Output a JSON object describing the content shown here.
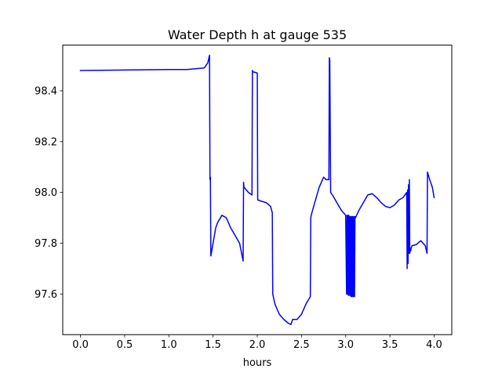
{
  "chart_data": {
    "type": "line",
    "title": "Water Depth h at gauge 535",
    "xlabel": "hours",
    "ylabel": "",
    "xlim": [
      -0.2,
      4.2
    ],
    "ylim": [
      97.44,
      98.58
    ],
    "xticks": [
      0.0,
      0.5,
      1.0,
      1.5,
      2.0,
      2.5,
      3.0,
      3.5,
      4.0
    ],
    "xtick_labels": [
      "0.0",
      "0.5",
      "1.0",
      "1.5",
      "2.0",
      "2.5",
      "3.0",
      "3.5",
      "4.0"
    ],
    "yticks": [
      97.6,
      97.8,
      98.0,
      98.2,
      98.4
    ],
    "ytick_labels": [
      "97.6",
      "97.8",
      "98.0",
      "98.2",
      "98.4"
    ],
    "grid": false,
    "series": [
      {
        "color": "#0000ff",
        "x": [
          0.0,
          0.5,
          1.0,
          1.2,
          1.4,
          1.44,
          1.46,
          1.465,
          1.47,
          1.475,
          1.48,
          1.5,
          1.53,
          1.55,
          1.6,
          1.65,
          1.7,
          1.75,
          1.8,
          1.84,
          1.845,
          1.85,
          1.9,
          1.94,
          1.945,
          1.95,
          2.0,
          2.005,
          2.01,
          2.05,
          2.1,
          2.15,
          2.17,
          2.175,
          2.2,
          2.25,
          2.3,
          2.35,
          2.38,
          2.4,
          2.45,
          2.5,
          2.55,
          2.6,
          2.605,
          2.61,
          2.65,
          2.7,
          2.75,
          2.78,
          2.81,
          2.815,
          2.82,
          2.83,
          2.85,
          2.9,
          2.95,
          3.0,
          3.01,
          3.015,
          3.02,
          3.025,
          3.03,
          3.035,
          3.04,
          3.045,
          3.05,
          3.055,
          3.06,
          3.065,
          3.07,
          3.075,
          3.08,
          3.085,
          3.09,
          3.095,
          3.1,
          3.105,
          3.11,
          3.15,
          3.2,
          3.25,
          3.3,
          3.35,
          3.4,
          3.45,
          3.5,
          3.55,
          3.6,
          3.65,
          3.69,
          3.695,
          3.7,
          3.705,
          3.71,
          3.715,
          3.72,
          3.725,
          3.73,
          3.735,
          3.74,
          3.75,
          3.8,
          3.85,
          3.9,
          3.92,
          3.925,
          3.95,
          3.98,
          4.0
        ],
        "y": [
          98.48,
          98.482,
          98.484,
          98.484,
          98.49,
          98.51,
          98.54,
          98.05,
          98.06,
          97.75,
          97.76,
          97.8,
          97.86,
          97.88,
          97.91,
          97.9,
          97.86,
          97.83,
          97.8,
          97.73,
          98.04,
          98.02,
          98.0,
          97.99,
          98.48,
          98.475,
          98.47,
          97.97,
          97.97,
          97.965,
          97.96,
          97.945,
          97.92,
          97.6,
          97.56,
          97.52,
          97.5,
          97.485,
          97.48,
          97.5,
          97.5,
          97.52,
          97.56,
          97.59,
          97.9,
          97.91,
          97.96,
          98.02,
          98.06,
          98.05,
          98.05,
          98.53,
          98.52,
          98.0,
          97.99,
          97.96,
          97.93,
          97.91,
          97.6,
          97.91,
          97.6,
          97.91,
          97.595,
          97.91,
          97.595,
          97.905,
          97.595,
          97.905,
          97.59,
          97.905,
          97.59,
          97.905,
          97.59,
          97.905,
          97.59,
          97.905,
          97.59,
          97.905,
          97.9,
          97.93,
          97.96,
          97.99,
          97.995,
          97.98,
          97.96,
          97.945,
          97.94,
          97.95,
          97.97,
          97.98,
          98.0,
          97.7,
          98.01,
          97.72,
          98.03,
          97.76,
          98.05,
          97.76,
          97.78,
          97.77,
          97.78,
          97.79,
          97.795,
          97.81,
          97.79,
          97.76,
          98.08,
          98.05,
          98.02,
          97.98
        ]
      }
    ]
  }
}
